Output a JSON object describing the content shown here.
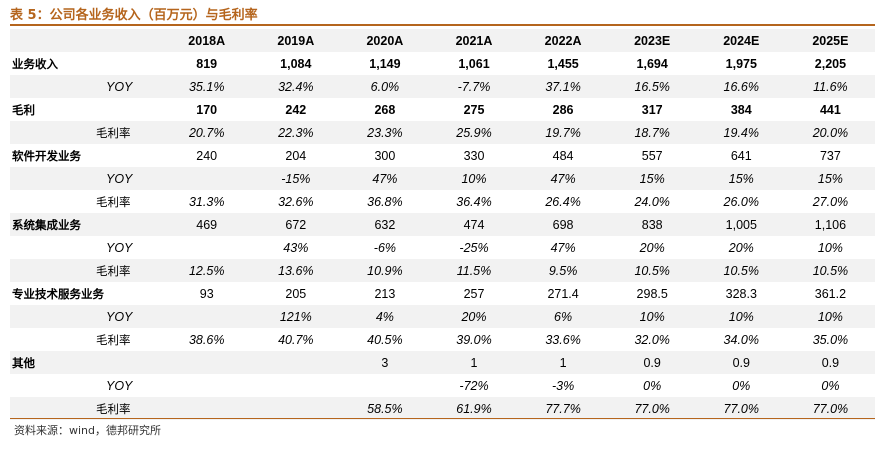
{
  "title": "表 5：公司各业务收入（百万元）与毛利率",
  "source": "资料来源：wind，德邦研究所",
  "table": {
    "header": [
      "",
      "2018A",
      "2019A",
      "2020A",
      "2021A",
      "2022A",
      "2023E",
      "2024E",
      "2025E"
    ],
    "rows": [
      {
        "label": "业务收入",
        "kind": "main",
        "values": [
          "819",
          "1,084",
          "1,149",
          "1,061",
          "1,455",
          "1,694",
          "1,975",
          "2,205"
        ]
      },
      {
        "label": "YOY",
        "kind": "sub",
        "values": [
          "35.1%",
          "32.4%",
          "6.0%",
          "-7.7%",
          "37.1%",
          "16.5%",
          "16.6%",
          "11.6%"
        ]
      },
      {
        "label": "毛利",
        "kind": "main",
        "values": [
          "170",
          "242",
          "268",
          "275",
          "286",
          "317",
          "384",
          "441"
        ]
      },
      {
        "label": "毛利率",
        "kind": "subcn",
        "values": [
          "20.7%",
          "22.3%",
          "23.3%",
          "25.9%",
          "19.7%",
          "18.7%",
          "19.4%",
          "20.0%"
        ]
      },
      {
        "label": "软件开发业务",
        "kind": "main2",
        "values": [
          "240",
          "204",
          "300",
          "330",
          "484",
          "557",
          "641",
          "737"
        ]
      },
      {
        "label": "YOY",
        "kind": "sub",
        "values": [
          "",
          "-15%",
          "47%",
          "10%",
          "47%",
          "15%",
          "15%",
          "15%"
        ]
      },
      {
        "label": "毛利率",
        "kind": "subcn",
        "values": [
          "31.3%",
          "32.6%",
          "36.8%",
          "36.4%",
          "26.4%",
          "24.0%",
          "26.0%",
          "27.0%"
        ]
      },
      {
        "label": "系统集成业务",
        "kind": "main2",
        "values": [
          "469",
          "672",
          "632",
          "474",
          "698",
          "838",
          "1,005",
          "1,106"
        ]
      },
      {
        "label": "YOY",
        "kind": "sub",
        "values": [
          "",
          "43%",
          "-6%",
          "-25%",
          "47%",
          "20%",
          "20%",
          "10%"
        ]
      },
      {
        "label": "毛利率",
        "kind": "subcn",
        "values": [
          "12.5%",
          "13.6%",
          "10.9%",
          "11.5%",
          "9.5%",
          "10.5%",
          "10.5%",
          "10.5%"
        ]
      },
      {
        "label": "专业技术服务业务",
        "kind": "main2",
        "values": [
          "93",
          "205",
          "213",
          "257",
          "271.4",
          "298.5",
          "328.3",
          "361.2"
        ]
      },
      {
        "label": "YOY",
        "kind": "sub",
        "values": [
          "",
          "121%",
          "4%",
          "20%",
          "6%",
          "10%",
          "10%",
          "10%"
        ]
      },
      {
        "label": "毛利率",
        "kind": "subcn",
        "values": [
          "38.6%",
          "40.7%",
          "40.5%",
          "39.0%",
          "33.6%",
          "32.0%",
          "34.0%",
          "35.0%"
        ]
      },
      {
        "label": "其他",
        "kind": "main2",
        "values": [
          "",
          "",
          "3",
          "1",
          "1",
          "0.9",
          "0.9",
          "0.9"
        ]
      },
      {
        "label": "YOY",
        "kind": "sub",
        "values": [
          "",
          "",
          "",
          "-72%",
          "-3%",
          "0%",
          "0%",
          "0%"
        ]
      },
      {
        "label": "毛利率",
        "kind": "subcn",
        "values": [
          "",
          "",
          "58.5%",
          "61.9%",
          "77.7%",
          "77.0%",
          "77.0%",
          "77.0%"
        ]
      }
    ]
  }
}
